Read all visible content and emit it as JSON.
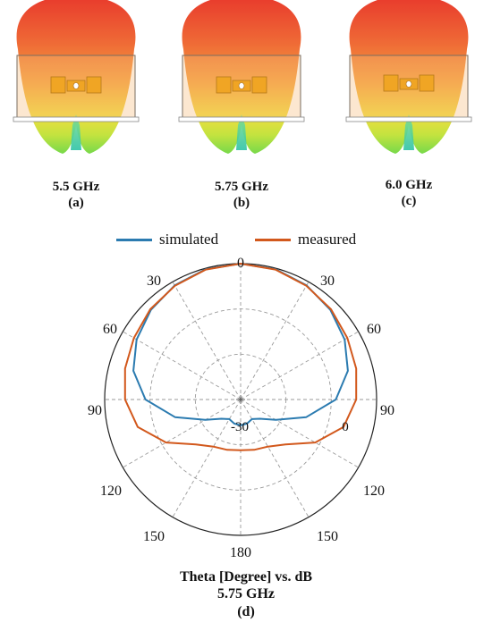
{
  "panels": [
    {
      "frequency": "5.5 GHz",
      "letter": "(a)"
    },
    {
      "frequency": "5.75 GHz",
      "letter": "(b)"
    },
    {
      "frequency": "6.0 GHz",
      "letter": "(c)"
    }
  ],
  "chart_data": {
    "type": "polar",
    "title": "Theta [Degree] vs. dB",
    "subtitle": "5.75 GHz",
    "panel_letter": "(d)",
    "legend": {
      "placement": "top",
      "entries": [
        "simulated",
        "measured"
      ]
    },
    "angle_tick_labels": {
      "top": "0",
      "upper_left": "30",
      "upper_right": "30",
      "left_60": "60",
      "right_60": "60",
      "left_90": "90",
      "right_90": "90",
      "left_120": "120",
      "right_120": "120",
      "left_150": "150",
      "right_150": "150",
      "bottom": "180"
    },
    "radial_tick_labels": [
      "-30",
      "0"
    ],
    "rlim": [
      -30,
      0
    ],
    "grid": true,
    "series": [
      {
        "name": "simulated",
        "color": "#2b7bb0",
        "theta_deg": [
          0,
          15,
          30,
          45,
          60,
          75,
          90,
          105,
          120,
          135,
          150,
          165,
          180,
          195,
          210,
          225,
          240,
          255,
          270,
          285,
          300,
          315,
          330,
          345
        ],
        "gain_db": [
          0,
          -0.2,
          -0.9,
          -2,
          -3.5,
          -5.5,
          -9,
          -15,
          -21,
          -24,
          -25,
          -24.5,
          -24.3,
          -24.5,
          -25,
          -24,
          -21,
          -15,
          -9,
          -5.5,
          -3.5,
          -2,
          -0.9,
          -0.2
        ]
      },
      {
        "name": "measured",
        "color": "#d2581c",
        "theta_deg": [
          0,
          15,
          30,
          45,
          60,
          75,
          90,
          105,
          120,
          135,
          150,
          165,
          180,
          195,
          210,
          225,
          240,
          255,
          270,
          285,
          300,
          315,
          330,
          345
        ],
        "gain_db": [
          0,
          -0.3,
          -1,
          -1.8,
          -2.8,
          -3.6,
          -4.5,
          -6.5,
          -11,
          -16,
          -18,
          -18.5,
          -18.8,
          -18.5,
          -18,
          -16,
          -11,
          -6.5,
          -4.5,
          -3.6,
          -2.8,
          -1.8,
          -1,
          -0.3
        ]
      }
    ]
  }
}
